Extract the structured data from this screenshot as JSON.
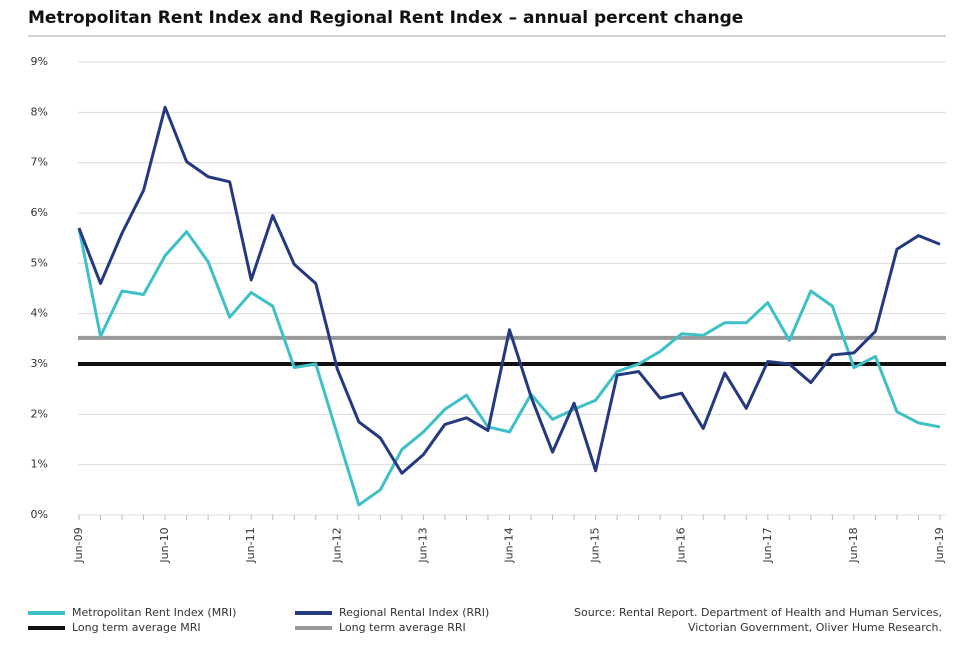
{
  "chart_data": {
    "type": "line",
    "title": "Metropolitan Rent Index and Regional Rent Index – annual percent change",
    "categories": [
      "Jun-09",
      null,
      null,
      null,
      "Jun-10",
      null,
      null,
      null,
      "Jun-11",
      null,
      null,
      null,
      "Jun-12",
      null,
      null,
      null,
      "Jun-13",
      null,
      null,
      null,
      "Jun-14",
      null,
      null,
      null,
      "Jun-15",
      null,
      null,
      null,
      "Jun-16",
      null,
      null,
      null,
      "Jun-17",
      null,
      null,
      null,
      "Jun-18",
      null,
      null,
      null,
      "Jun-19"
    ],
    "series": [
      {
        "name": "Metropolitan Rent Index (MRI)",
        "color": "#3ec1c6",
        "values": [
          5.7,
          3.55,
          4.45,
          4.38,
          5.15,
          5.63,
          5.03,
          3.93,
          4.42,
          4.15,
          2.93,
          3.0,
          1.6,
          0.2,
          0.5,
          1.3,
          1.65,
          2.1,
          2.38,
          1.75,
          1.65,
          2.4,
          1.9,
          2.1,
          2.28,
          2.85,
          3.0,
          3.25,
          3.6,
          3.57,
          3.82,
          3.82,
          4.22,
          3.47,
          4.45,
          4.15,
          2.93,
          3.15,
          2.05,
          1.83,
          1.75
        ]
      },
      {
        "name": "Regional Rental Index (RRI)",
        "color": "#24397f",
        "values": [
          5.7,
          4.6,
          5.6,
          6.45,
          8.1,
          7.02,
          6.72,
          6.62,
          4.67,
          5.95,
          4.98,
          4.6,
          2.9,
          1.85,
          1.53,
          0.83,
          1.2,
          1.8,
          1.93,
          1.68,
          3.68,
          2.35,
          1.25,
          2.22,
          0.88,
          2.78,
          2.85,
          2.32,
          2.42,
          1.72,
          2.82,
          2.12,
          3.05,
          3.0,
          2.63,
          3.18,
          3.22,
          3.65,
          5.28,
          5.55,
          5.38
        ]
      }
    ],
    "reference_lines": [
      {
        "name": "Long term average MRI",
        "color": "#111111",
        "value": 3.0
      },
      {
        "name": "Long term average RRI",
        "color": "#999999",
        "value": 3.52
      }
    ],
    "ylim": [
      0,
      9
    ],
    "yticks": [
      {
        "value": 0,
        "label": "0%"
      },
      {
        "value": 1,
        "label": "1%"
      },
      {
        "value": 2,
        "label": "2%"
      },
      {
        "value": 3,
        "label": "3%"
      },
      {
        "value": 4,
        "label": "4%"
      },
      {
        "value": 5,
        "label": "5%"
      },
      {
        "value": 6,
        "label": "6%"
      },
      {
        "value": 7,
        "label": "7%"
      },
      {
        "value": 8,
        "label": "8%"
      },
      {
        "value": 9,
        "label": "9%"
      }
    ],
    "grid": true,
    "source": [
      "Source: Rental Report. Department of Health and Human Services,",
      "Victorian Government, Oliver Hume Research."
    ]
  }
}
